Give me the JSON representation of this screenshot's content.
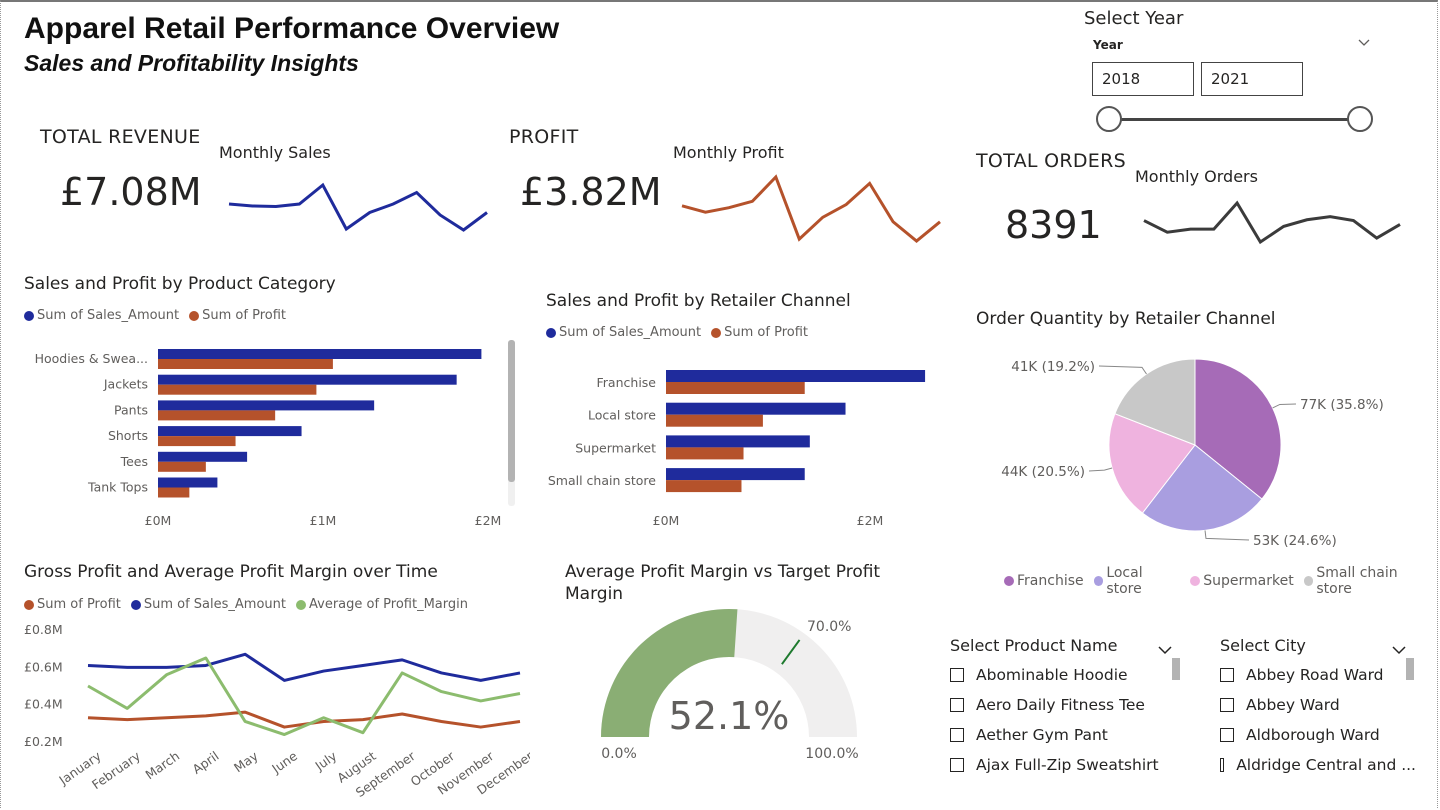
{
  "header": {
    "title": "Apparel Retail Performance Overview",
    "subtitle": "Sales and Profitability Insights"
  },
  "year_slicer": {
    "title": "Select Year",
    "field_label": "Year",
    "from": "2018",
    "to": "2021",
    "range_fraction": [
      0,
      1
    ]
  },
  "kpis": {
    "revenue": {
      "label": "TOTAL REVENUE",
      "value": "£7.08M",
      "spark_label": "Monthly Sales",
      "spark": [
        0.62,
        0.58,
        0.57,
        0.62,
        1.0,
        0.12,
        0.45,
        0.62,
        0.85,
        0.4,
        0.1,
        0.45
      ]
    },
    "profit": {
      "label": "PROFIT",
      "value": "£3.82M",
      "spark_label": "Monthly Profit",
      "spark": [
        0.55,
        0.45,
        0.52,
        0.62,
        1.0,
        0.03,
        0.37,
        0.57,
        0.9,
        0.3,
        0.0,
        0.3
      ]
    },
    "orders": {
      "label": "TOTAL ORDERS",
      "value": "8391",
      "spark_label": "Monthly Orders",
      "spark": [
        0.55,
        0.25,
        0.33,
        0.33,
        1.0,
        0.0,
        0.4,
        0.57,
        0.65,
        0.55,
        0.1,
        0.45
      ]
    }
  },
  "colors": {
    "sales": "#1f2b9c",
    "profit": "#b5522b",
    "margin": "#8cbc6e",
    "orders_line": "#3b3b3b",
    "franchise": "#a66bb7",
    "local_store": "#a99ee0",
    "supermarket": "#efb3df",
    "small_chain": "#c8c8c8",
    "gauge_fill": "#8aae74",
    "gauge_bg": "#f0efef",
    "target": "#1e7a2e"
  },
  "category_chart": {
    "title": "Sales and Profit by Product Category",
    "legend": [
      "Sum of Sales_Amount",
      "Sum of Profit"
    ],
    "x_ticks": [
      "£0M",
      "£1M",
      "£2M"
    ]
  },
  "channel_chart": {
    "title": "Sales and Profit by Retailer Channel",
    "legend": [
      "Sum of Sales_Amount",
      "Sum of Profit"
    ],
    "x_ticks": [
      "£0M",
      "£2M"
    ]
  },
  "pie_chart": {
    "title": "Order Quantity by Retailer Channel",
    "legend": [
      "Franchise",
      "Local store",
      "Supermarket",
      "Small chain store"
    ]
  },
  "time_chart": {
    "title": "Gross Profit and Average Profit Margin over Time",
    "legend": [
      "Sum of Profit",
      "Sum of Sales_Amount",
      "Average of Profit_Margin"
    ],
    "y_ticks": [
      "£0.8M",
      "£0.6M",
      "£0.4M",
      "£0.2M"
    ]
  },
  "gauge": {
    "title": "Average Profit Margin vs Target Profit Margin",
    "value": 52.1,
    "value_label": "52.1%",
    "target": 70.0,
    "target_label": "70.0%",
    "min_label": "0.0%",
    "max_label": "100.0%"
  },
  "product_slicer": {
    "title": "Select Product Name",
    "items": [
      "Abominable Hoodie",
      "Aero Daily Fitness Tee",
      "Aether Gym Pant",
      "Ajax Full-Zip Sweatshirt"
    ]
  },
  "city_slicer": {
    "title": "Select City",
    "items": [
      "Abbey Road Ward",
      "Abbey Ward",
      "Aldborough Ward",
      "Aldridge Central and ..."
    ]
  },
  "chart_data": [
    {
      "type": "bar",
      "title": "Sales and Profit by Product Category",
      "categories": [
        "Hoodies & Swea...",
        "Jackets",
        "Pants",
        "Shorts",
        "Tees",
        "Tank Tops"
      ],
      "series": [
        {
          "name": "Sum of Sales_Amount",
          "values": [
            1.96,
            1.81,
            1.31,
            0.87,
            0.54,
            0.36
          ]
        },
        {
          "name": "Sum of Profit",
          "values": [
            1.06,
            0.96,
            0.71,
            0.47,
            0.29,
            0.19
          ]
        }
      ],
      "xlim": [
        0,
        2
      ],
      "unit": "£M"
    },
    {
      "type": "bar",
      "title": "Sales and Profit by Retailer Channel",
      "categories": [
        "Franchise",
        "Local store",
        "Supermarket",
        "Small chain store"
      ],
      "series": [
        {
          "name": "Sum of Sales_Amount",
          "values": [
            2.54,
            1.76,
            1.41,
            1.36
          ]
        },
        {
          "name": "Sum of Profit",
          "values": [
            1.36,
            0.95,
            0.76,
            0.74
          ]
        }
      ],
      "xlim": [
        0,
        2.6
      ],
      "unit": "£M"
    },
    {
      "type": "pie",
      "title": "Order Quantity by Retailer Channel",
      "categories": [
        "Franchise",
        "Local store",
        "Supermarket",
        "Small chain store"
      ],
      "values": [
        77,
        53,
        44,
        41
      ],
      "labels": [
        "77K (35.8%)",
        "53K (24.6%)",
        "44K (20.5%)",
        "41K (19.2%)"
      ],
      "percent": [
        35.8,
        24.6,
        20.5,
        19.2
      ]
    },
    {
      "type": "line",
      "title": "Gross Profit and Average Profit Margin over Time",
      "categories": [
        "January",
        "February",
        "March",
        "April",
        "May",
        "June",
        "July",
        "August",
        "September",
        "October",
        "November",
        "December"
      ],
      "series": [
        {
          "name": "Sum of Profit",
          "values": [
            0.33,
            0.32,
            0.33,
            0.34,
            0.36,
            0.28,
            0.31,
            0.32,
            0.35,
            0.31,
            0.28,
            0.31
          ]
        },
        {
          "name": "Sum of Sales_Amount",
          "values": [
            0.61,
            0.6,
            0.6,
            0.61,
            0.67,
            0.53,
            0.58,
            0.61,
            0.64,
            0.57,
            0.53,
            0.57
          ]
        },
        {
          "name": "Average of Profit_Margin",
          "values": [
            0.5,
            0.38,
            0.56,
            0.65,
            0.31,
            0.24,
            0.33,
            0.25,
            0.57,
            0.47,
            0.42,
            0.46
          ]
        }
      ],
      "ylim": [
        0.2,
        0.8
      ],
      "unit": "£M"
    }
  ]
}
